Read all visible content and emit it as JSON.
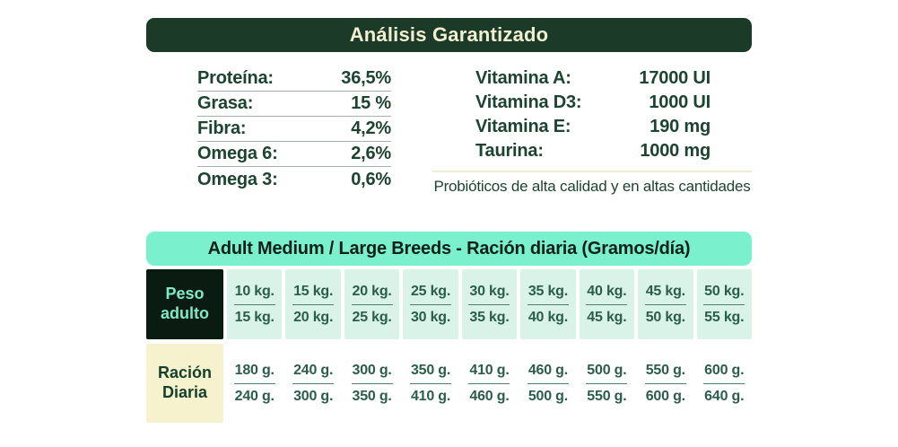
{
  "analysis": {
    "title": "Análisis Garantizado",
    "nutrients": [
      {
        "label": "Proteína:",
        "value": "36,5%"
      },
      {
        "label": "Grasa:",
        "value": "15 %"
      },
      {
        "label": "Fibra:",
        "value": "4,2%"
      },
      {
        "label": "Omega 6:",
        "value": "2,6%"
      },
      {
        "label": "Omega 3:",
        "value": "0,6%"
      }
    ],
    "vitamins": [
      {
        "label": "Vitamina A:",
        "value": "17000 UI"
      },
      {
        "label": "Vitamina D3:",
        "value": "1000 UI"
      },
      {
        "label": "Vitamina E:",
        "value": "190 mg"
      },
      {
        "label": "Taurina:",
        "value": "1000 mg"
      }
    ],
    "note": "Probióticos de alta calidad y en altas cantidades"
  },
  "ration_table": {
    "title": "Adult Medium / Large Breeds - Ración diaria (Gramos/día)",
    "weight_label_line1": "Peso",
    "weight_label_line2": "adulto",
    "ration_label_line1": "Ración",
    "ration_label_line2": "Diaria",
    "columns": [
      {
        "weight_min": "10 kg.",
        "weight_max": "15 kg.",
        "ration_min": "180 g.",
        "ration_max": "240 g."
      },
      {
        "weight_min": "15 kg.",
        "weight_max": "20 kg.",
        "ration_min": "240 g.",
        "ration_max": "300 g."
      },
      {
        "weight_min": "20 kg.",
        "weight_max": "25 kg.",
        "ration_min": "300 g.",
        "ration_max": "350 g."
      },
      {
        "weight_min": "25 kg.",
        "weight_max": "30 kg.",
        "ration_min": "350 g.",
        "ration_max": "410 g."
      },
      {
        "weight_min": "30 kg.",
        "weight_max": "35 kg.",
        "ration_min": "410 g.",
        "ration_max": "460 g."
      },
      {
        "weight_min": "35 kg.",
        "weight_max": "40 kg.",
        "ration_min": "460 g.",
        "ration_max": "500 g."
      },
      {
        "weight_min": "40 kg.",
        "weight_max": "45 kg.",
        "ration_min": "500 g.",
        "ration_max": "550 g."
      },
      {
        "weight_min": "45 kg.",
        "weight_max": "50 kg.",
        "ration_min": "550 g.",
        "ration_max": "600 g."
      },
      {
        "weight_min": "50 kg.",
        "weight_max": "55 kg.",
        "ration_min": "600 g.",
        "ration_max": "640 g."
      }
    ]
  },
  "colors": {
    "dark_green_header_bg": "#1b3a27",
    "cream_header_text": "#f2f0d2",
    "mint_header_bg": "#7bf0cd",
    "mint_header_text": "#0c2018",
    "dark_cell_bg": "#0a1b12",
    "mint_cell_text": "#7fe9c8",
    "light_mint_cell_bg": "#d9f3e9",
    "pale_yellow_cell_bg": "#f6f2cd",
    "body_text_green": "#1d4331",
    "cell_text_green": "#2b5d4b"
  }
}
